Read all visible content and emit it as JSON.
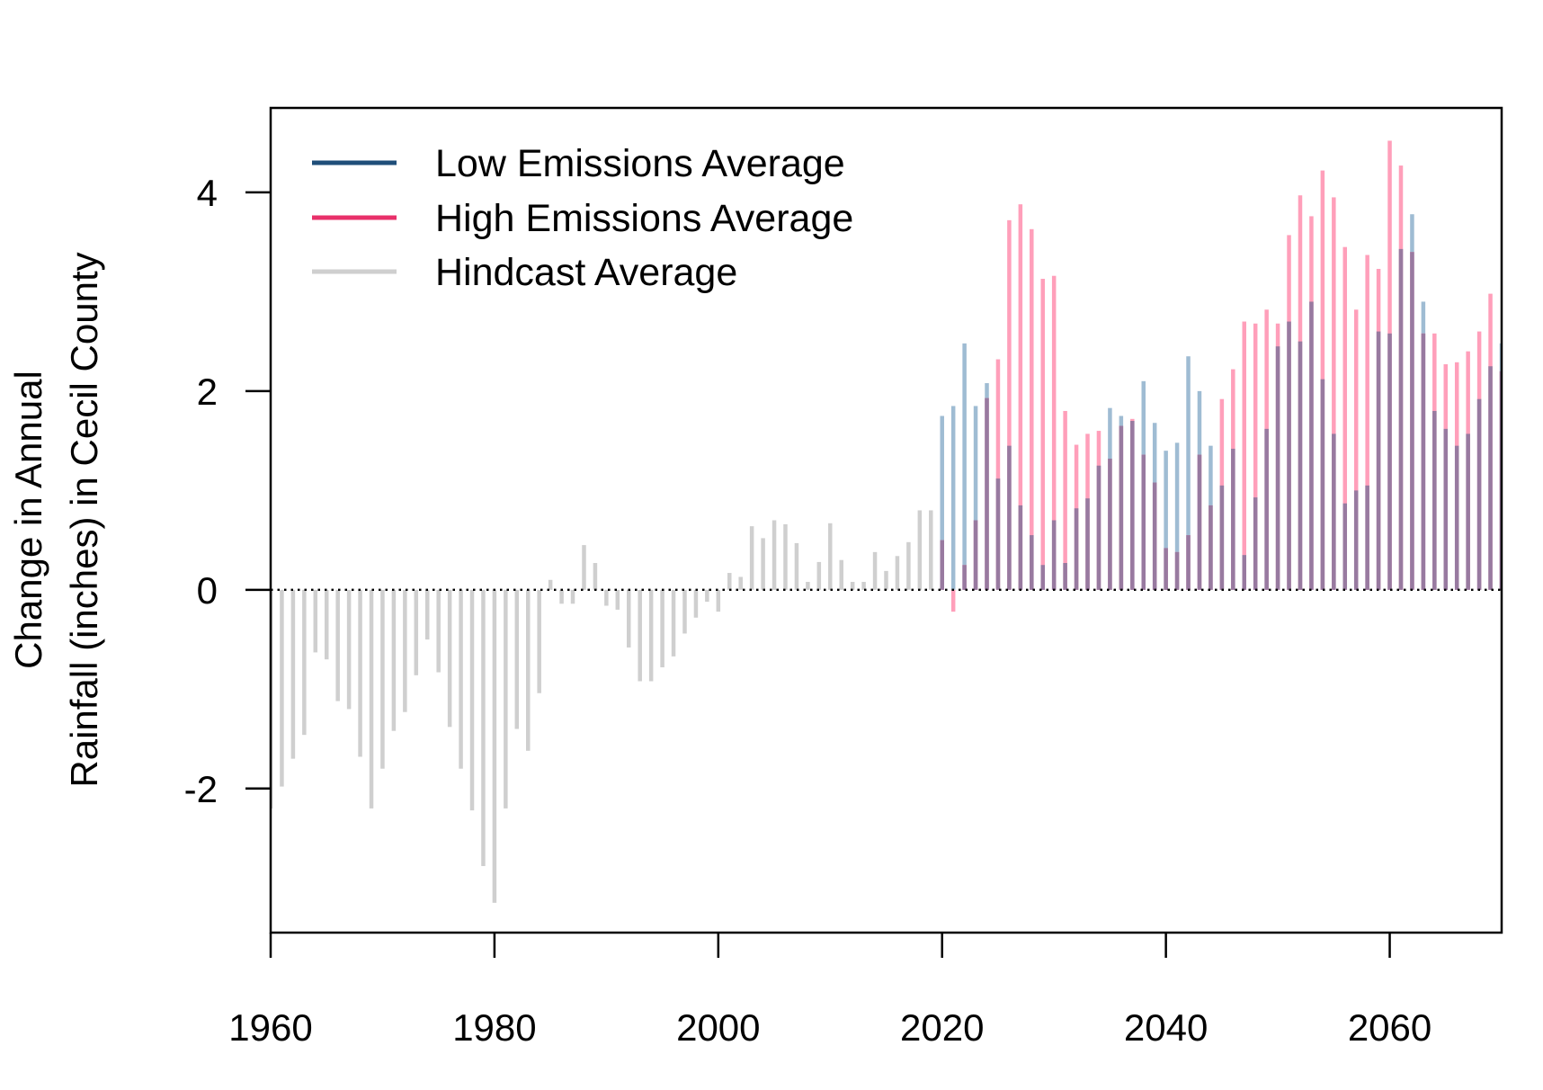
{
  "chart_data": {
    "type": "bar",
    "title": "",
    "xlabel": "",
    "ylabel_lines": [
      "Change in Annual",
      "Rainfall (inches) in Cecil County"
    ],
    "xlim": [
      1960,
      2070
    ],
    "ylim": [
      -3.45,
      4.85
    ],
    "x_ticks": [
      1960,
      1980,
      2000,
      2020,
      2040,
      2060
    ],
    "y_ticks": [
      -2,
      0,
      2,
      4
    ],
    "reference_line": {
      "y": 0,
      "style": "dotted"
    },
    "legend": {
      "position": "top-left",
      "items": [
        {
          "label": "Low Emissions Average",
          "color": "#1f4e79"
        },
        {
          "label": "High Emissions Average",
          "color": "#e8306a"
        },
        {
          "label": "Hindcast Average",
          "color": "#cfcfcf"
        }
      ]
    },
    "colors": {
      "low": "#9fbcd3",
      "high": "#ff9fba",
      "overlap": "#987aa0",
      "hindcast": "#cfcfcf"
    },
    "series": [
      {
        "name": "Hindcast Average",
        "start_year": 1960,
        "values": [
          -2.2,
          -1.98,
          -1.7,
          -1.46,
          -0.63,
          -0.7,
          -1.12,
          -1.2,
          -1.68,
          -2.2,
          -1.8,
          -1.42,
          -1.23,
          -0.86,
          -0.5,
          -0.83,
          -1.38,
          -1.8,
          -2.22,
          -2.78,
          -3.15,
          -2.2,
          -1.4,
          -1.62,
          -1.04,
          0.1,
          -0.14,
          -0.14,
          0.45,
          0.27,
          -0.16,
          -0.2,
          -0.58,
          -0.92,
          -0.92,
          -0.78,
          -0.67,
          -0.44,
          -0.28,
          -0.12,
          -0.22,
          0.17,
          0.13,
          0.64,
          0.52,
          0.7,
          0.66,
          0.47,
          0.08,
          0.28,
          0.67,
          0.3,
          0.08,
          0.08,
          0.38,
          0.19,
          0.34,
          0.48,
          0.8,
          0.8
        ]
      },
      {
        "name": "Low Emissions Average",
        "start_year": 2020,
        "values": [
          1.75,
          1.85,
          2.48,
          1.85,
          2.08,
          1.12,
          1.45,
          0.85,
          0.55,
          0.25,
          0.7,
          0.27,
          0.82,
          0.92,
          1.25,
          1.83,
          1.75,
          1.7,
          2.1,
          1.68,
          1.4,
          1.48,
          2.35,
          2.0,
          1.45,
          1.05,
          1.42,
          0.35,
          0.93,
          1.62,
          2.45,
          2.7,
          2.5,
          2.9,
          2.12,
          1.57,
          0.87,
          1.0,
          1.05,
          2.6,
          2.58,
          3.43,
          3.78,
          2.9,
          1.8,
          1.62,
          1.45,
          1.57,
          1.92,
          2.25,
          2.48
        ]
      },
      {
        "name": "High Emissions Average",
        "start_year": 2020,
        "values": [
          0.5,
          -0.22,
          0.25,
          0.7,
          1.93,
          2.32,
          3.72,
          3.88,
          3.63,
          3.13,
          3.16,
          1.8,
          1.46,
          1.57,
          1.6,
          1.32,
          1.65,
          1.72,
          1.36,
          1.08,
          0.42,
          0.38,
          0.55,
          1.36,
          0.85,
          1.92,
          2.22,
          2.7,
          2.68,
          2.82,
          2.68,
          3.57,
          3.97,
          3.76,
          4.22,
          3.95,
          3.45,
          2.82,
          3.37,
          3.23,
          4.52,
          4.27,
          3.4,
          2.58,
          2.58,
          2.27,
          2.29,
          2.4,
          2.6,
          2.98,
          2.2
        ]
      }
    ]
  }
}
